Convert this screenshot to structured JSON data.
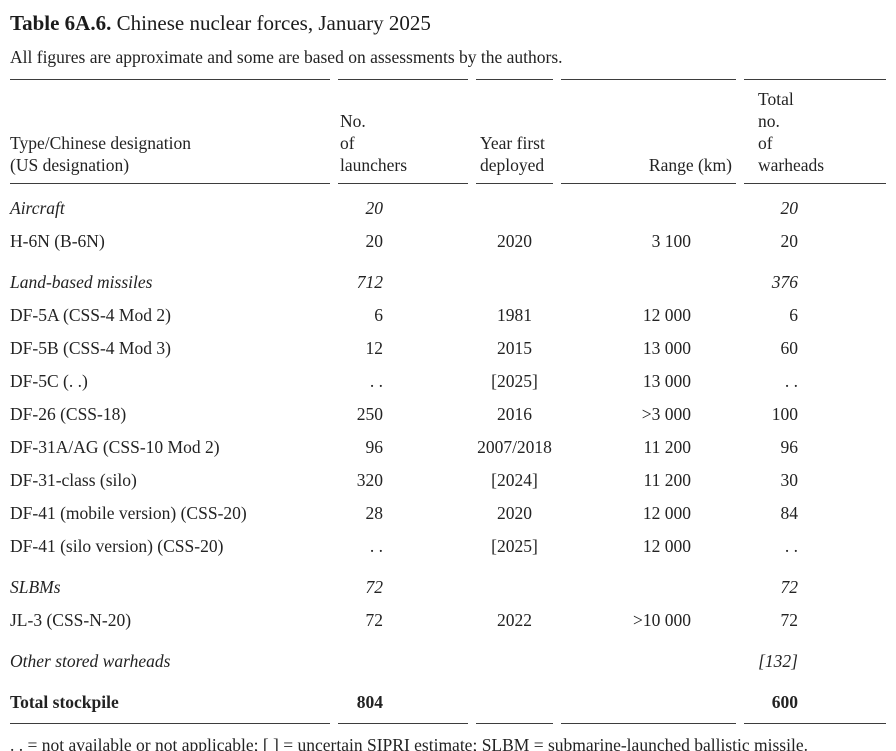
{
  "page": {
    "title_label": "Table 6A.6.",
    "title_text": "Chinese nuclear forces, January 2025",
    "subtitle": "All figures are approximate and some are based on assessments by the authors.",
    "footnote": ". . = not available or not applicable; [ ] = uncertain SIPRI estimate; SLBM = submarine-launched ballistic missile."
  },
  "table": {
    "header": {
      "col1_line1": "Type/Chinese designation",
      "col1_line2": "(US designation)",
      "col2_line1": "No. of",
      "col2_line2": "launchers",
      "col3_line1": "Year first",
      "col3_line2": "deployed",
      "col4": "Range (km)",
      "col5_line1": "Total no. of",
      "col5_line2": "warheads"
    },
    "rows": [
      {
        "style": "section",
        "type": "Aircraft",
        "launchers": "20",
        "year": "",
        "range": "",
        "warheads": "20"
      },
      {
        "style": "normal",
        "type": "H-6N (B-6N)",
        "launchers": "20",
        "year": "2020",
        "range": "3 100",
        "warheads": "20"
      },
      {
        "style": "section",
        "type": "Land-based missiles",
        "launchers": "712",
        "year": "",
        "range": "",
        "warheads": "376"
      },
      {
        "style": "normal",
        "type": "DF-5A (CSS-4 Mod 2)",
        "launchers": "6",
        "year": "1981",
        "range": "12 000",
        "warheads": "6"
      },
      {
        "style": "normal",
        "type": "DF-5B (CSS-4 Mod 3)",
        "launchers": "12",
        "year": "2015",
        "range": "13 000",
        "warheads": "60"
      },
      {
        "style": "normal",
        "type": "DF-5C (. .)",
        "launchers": ". .",
        "year": "[2025]",
        "range": "13 000",
        "warheads": ". ."
      },
      {
        "style": "normal",
        "type": "DF-26 (CSS-18)",
        "launchers": "250",
        "year": "2016",
        "range": ">3 000",
        "warheads": "100"
      },
      {
        "style": "normal",
        "type": "DF-31A/AG (CSS-10 Mod 2)",
        "launchers": "96",
        "year": "2007/2018",
        "range": "11 200",
        "warheads": "96"
      },
      {
        "style": "normal",
        "type": "DF-31-class (silo)",
        "launchers": "320",
        "year": "[2024]",
        "range": "11 200",
        "warheads": "30"
      },
      {
        "style": "normal",
        "type": "DF-41 (mobile version) (CSS-20)",
        "launchers": "28",
        "year": "2020",
        "range": "12 000",
        "warheads": "84"
      },
      {
        "style": "normal",
        "type": "DF-41 (silo version) (CSS-20)",
        "launchers": ". .",
        "year": "[2025]",
        "range": "12 000",
        "warheads": ". ."
      },
      {
        "style": "section",
        "type": "SLBMs",
        "launchers": "72",
        "year": "",
        "range": "",
        "warheads": "72"
      },
      {
        "style": "normal",
        "type": "JL-3 (CSS-N-20)",
        "launchers": "72",
        "year": "2022",
        "range": ">10 000",
        "warheads": "72"
      },
      {
        "style": "section",
        "type": "Other stored warheads",
        "launchers": "",
        "year": "",
        "range": "",
        "warheads": "[132]"
      },
      {
        "style": "total",
        "type": "Total stockpile",
        "launchers": "804",
        "year": "",
        "range": "",
        "warheads": "600"
      }
    ]
  }
}
